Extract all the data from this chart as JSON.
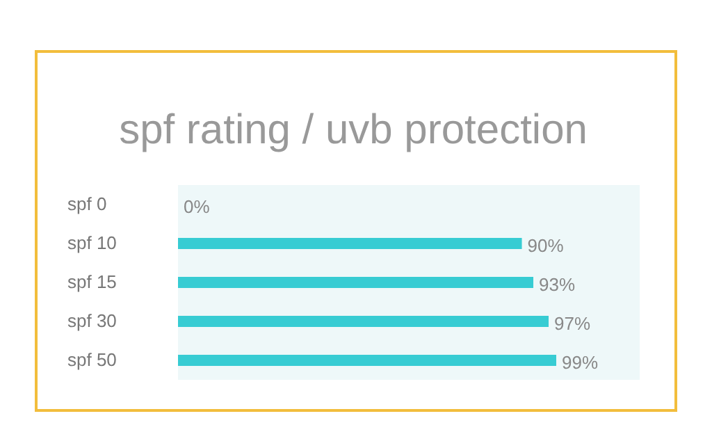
{
  "chart_data": {
    "type": "bar",
    "orientation": "horizontal",
    "title": "spf rating / uvb protection",
    "categories": [
      "spf 0",
      "spf 10",
      "spf 15",
      "spf 30",
      "spf 50"
    ],
    "values": [
      0,
      90,
      93,
      97,
      99
    ],
    "color": "#37ccd3",
    "value_labels": [
      "0%",
      "90%",
      "93%",
      "97%",
      "99%"
    ]
  }
}
